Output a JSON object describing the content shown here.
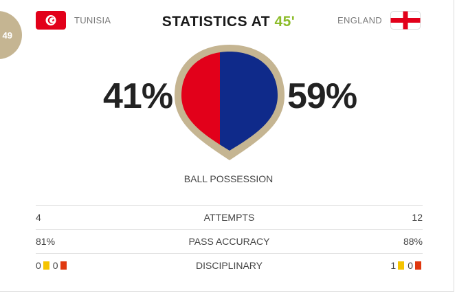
{
  "match": {
    "badge": "49",
    "title_prefix": "STATISTICS AT",
    "minute": "45'"
  },
  "home": {
    "name": "TUNISIA",
    "possession": "41%",
    "attempts": "4",
    "pass_accuracy": "81%",
    "yellow": "0",
    "red": "0",
    "color": "#e2001a"
  },
  "away": {
    "name": "ENGLAND",
    "possession": "59%",
    "attempts": "12",
    "pass_accuracy": "88%",
    "yellow": "1",
    "red": "0",
    "color": "#0f2a8a"
  },
  "labels": {
    "possession": "BALL POSSESSION",
    "attempts": "ATTEMPTS",
    "pass_accuracy": "PASS ACCURACY",
    "disciplinary": "DISCIPLINARY"
  },
  "colors": {
    "gold": "#c5b592",
    "minute": "#8cbc2a",
    "yellow_card": "#f5c400",
    "red_card": "#e0380f"
  },
  "icons": {
    "home_flag": "tunisia-flag-icon",
    "away_flag": "england-flag-icon",
    "ball": "possession-ball-icon"
  }
}
